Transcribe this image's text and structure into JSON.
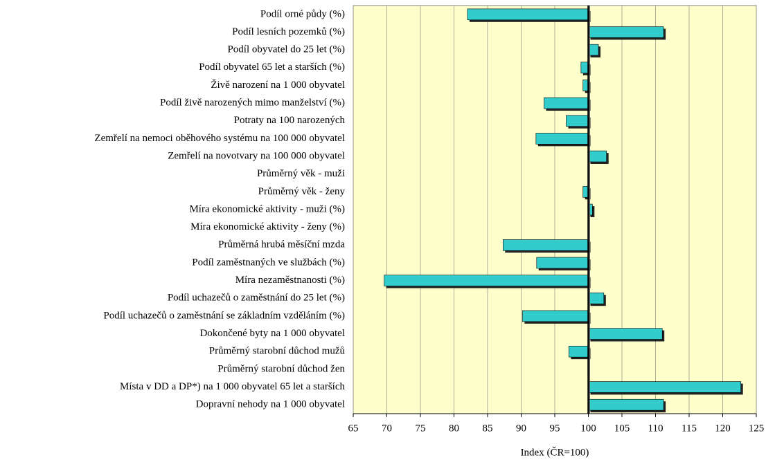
{
  "chart_data": {
    "type": "bar",
    "orientation": "horizontal",
    "categories": [
      "Podíl orné půdy (%)",
      "Podíl lesních pozemků (%)",
      "Podíl obyvatel do 25 let (%)",
      "Podíl obyvatel 65 let a starších (%)",
      "Živě narození na 1 000 obyvatel",
      "Podíl živě narozených mimo manželství (%)",
      "Potraty na 100 narozených",
      "Zemřelí na nemoci oběhového systému na 100 000 obyvatel",
      "Zemřelí na novotvary na 100 000 obyvatel",
      "Průměrný věk - muži",
      "Průměrný věk - ženy",
      "Míra ekonomické aktivity - muži (%)",
      "Míra ekonomické aktivity - ženy (%)",
      "Průměrná hrubá měsíční mzda",
      "Podíl zaměstnaných ve službách (%)",
      "Míra nezaměstnanosti (%)",
      "Podíl uchazečů o zaměstnání do 25 let (%)",
      "Podíl uchazečů o zaměstnání se základním vzděláním (%)",
      "Dokončené byty na 1 000 obyvatel",
      "Průměrný starobní důchod mužů",
      "Průměrný starobní důchod žen",
      "Místa v DD a DP*) na 1 000 obyvatel 65 let a starších",
      "Dopravní nehody na 1 000 obyvatel"
    ],
    "values": [
      82.0,
      111.2,
      101.5,
      98.9,
      99.2,
      93.4,
      96.7,
      92.2,
      102.7,
      100.0,
      99.2,
      100.6,
      100.0,
      87.3,
      92.3,
      69.6,
      102.3,
      90.2,
      111.0,
      97.1,
      100.0,
      122.7,
      111.2
    ],
    "baseline": 100,
    "color": "#33cccc",
    "shadow_color": "#222222",
    "background": "#ffffcc",
    "xlim": [
      65,
      125
    ],
    "xticks": [
      65,
      70,
      75,
      80,
      85,
      90,
      95,
      100,
      105,
      110,
      115,
      120,
      125
    ],
    "xlabel": "Index (ČR=100)",
    "grid": true
  }
}
